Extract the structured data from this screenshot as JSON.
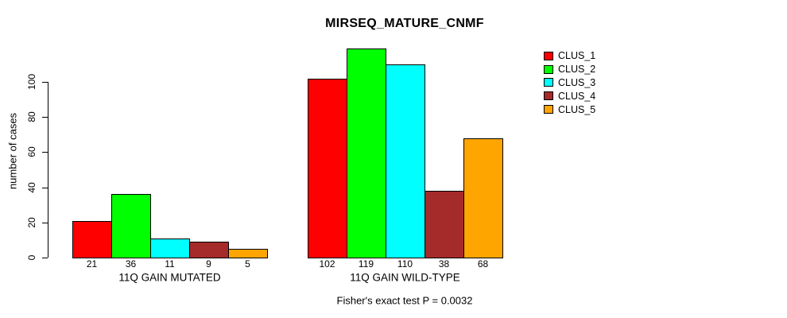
{
  "chart_data": {
    "type": "bar",
    "title": "MIRSEQ_MATURE_CNMF",
    "ylabel": "number of cases",
    "xlabel": "",
    "ylim": [
      0,
      100
    ],
    "yticks": [
      0,
      20,
      40,
      60,
      80,
      100
    ],
    "grid": false,
    "legend_position": "right",
    "categories": [
      "11Q GAIN MUTATED",
      "11Q GAIN WILD-TYPE"
    ],
    "series": [
      {
        "name": "CLUS_1",
        "color": "#FF0000",
        "values": [
          21,
          102
        ]
      },
      {
        "name": "CLUS_2",
        "color": "#00FF00",
        "values": [
          36,
          119
        ]
      },
      {
        "name": "CLUS_3",
        "color": "#00FFFF",
        "values": [
          11,
          110
        ]
      },
      {
        "name": "CLUS_4",
        "color": "#A52A2A",
        "values": [
          9,
          38
        ]
      },
      {
        "name": "CLUS_5",
        "color": "#FFA500",
        "values": [
          5,
          68
        ]
      }
    ],
    "bar_value_labels": {
      "11Q GAIN MUTATED": [
        21,
        36,
        11,
        9,
        5
      ],
      "11Q GAIN WILD-TYPE": [
        102,
        119,
        110,
        38,
        68
      ]
    },
    "annotation": "Fisher's exact test P = 0.0032"
  },
  "colors": {
    "background": "#FFFFFF",
    "axis": "#000000",
    "bar_border": "#000000"
  }
}
